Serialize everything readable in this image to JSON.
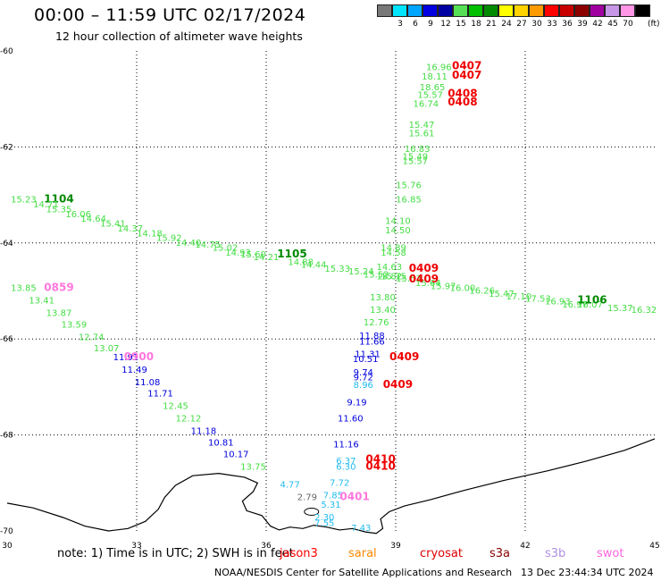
{
  "header": {
    "title": "00:00 – 11:59 UTC 02/17/2024",
    "subtitle": "12 hour collection of altimeter wave heights"
  },
  "legend": {
    "unit": "(ft)",
    "items": [
      {
        "color": "#787878",
        "label": ""
      },
      {
        "color": "#00e5ff",
        "label": "3"
      },
      {
        "color": "#00a5ff",
        "label": "6"
      },
      {
        "color": "#0000e0",
        "label": "9"
      },
      {
        "color": "#0000a0",
        "label": "12"
      },
      {
        "color": "#55e055",
        "label": "15"
      },
      {
        "color": "#00c000",
        "label": "18"
      },
      {
        "color": "#008a00",
        "label": "21"
      },
      {
        "color": "#ffff00",
        "label": "24"
      },
      {
        "color": "#ffd200",
        "label": "27"
      },
      {
        "color": "#ff9a00",
        "label": "30"
      },
      {
        "color": "#ff0000",
        "label": "33"
      },
      {
        "color": "#c80000",
        "label": "36"
      },
      {
        "color": "#8c0000",
        "label": "39"
      },
      {
        "color": "#a000a0",
        "label": "42"
      },
      {
        "color": "#c896e6",
        "label": "45"
      },
      {
        "color": "#ff96e6",
        "label": "70"
      },
      {
        "color": "#000000",
        "label": ""
      }
    ]
  },
  "axes": {
    "lon_ticks": [
      "30",
      "33",
      "36",
      "39",
      "42",
      "45"
    ],
    "lat_ticks": [
      "-60",
      "-62",
      "-64",
      "-66",
      "-68",
      "-70"
    ]
  },
  "colors": {
    "light_green": "#44dd44",
    "dark_green": "#008800",
    "blue": "#0000dd",
    "red": "#ee0000",
    "pink": "#ff77dd",
    "cyan": "#22bbee",
    "gray": "#666666"
  },
  "track1_labels": [
    {
      "text": "15.23",
      "lon": 30.38,
      "lat": -63.16,
      "c": "light_green"
    },
    {
      "text": "1104",
      "lon": 31.2,
      "lat": -63.16,
      "c": "dark_green"
    },
    {
      "text": "14.71",
      "lon": 30.9,
      "lat": -63.26,
      "c": "light_green"
    },
    {
      "text": "15.35",
      "lon": 31.2,
      "lat": -63.36,
      "c": "light_green"
    },
    {
      "text": "16.06",
      "lon": 31.65,
      "lat": -63.46,
      "c": "light_green"
    },
    {
      "text": "14.64",
      "lon": 32.0,
      "lat": -63.56,
      "c": "light_green"
    },
    {
      "text": "15.41",
      "lon": 32.45,
      "lat": -63.66,
      "c": "light_green"
    },
    {
      "text": "14.37",
      "lon": 32.85,
      "lat": -63.76,
      "c": "light_green"
    },
    {
      "text": "14.18",
      "lon": 33.3,
      "lat": -63.86,
      "c": "light_green"
    },
    {
      "text": "15.92",
      "lon": 33.75,
      "lat": -63.96,
      "c": "light_green"
    },
    {
      "text": "14.40",
      "lon": 34.2,
      "lat": -64.06,
      "c": "light_green"
    },
    {
      "text": "14.75",
      "lon": 34.65,
      "lat": -64.1,
      "c": "light_green"
    },
    {
      "text": "15.02",
      "lon": 35.05,
      "lat": -64.16,
      "c": "light_green"
    },
    {
      "text": "14.93",
      "lon": 35.35,
      "lat": -64.26,
      "c": "light_green"
    },
    {
      "text": "15.60",
      "lon": 35.7,
      "lat": -64.3,
      "c": "light_green"
    },
    {
      "text": "14.21",
      "lon": 36.0,
      "lat": -64.36,
      "c": "light_green"
    },
    {
      "text": "1105",
      "lon": 36.6,
      "lat": -64.3,
      "c": "dark_green"
    },
    {
      "text": "14.88",
      "lon": 36.8,
      "lat": -64.46,
      "c": "light_green"
    },
    {
      "text": "14.44",
      "lon": 37.1,
      "lat": -64.52,
      "c": "light_green"
    },
    {
      "text": "15.33",
      "lon": 37.65,
      "lat": -64.6,
      "c": "light_green"
    },
    {
      "text": "15.24",
      "lon": 38.2,
      "lat": -64.66,
      "c": "light_green"
    },
    {
      "text": "15.52",
      "lon": 38.55,
      "lat": -64.72,
      "c": "light_green"
    },
    {
      "text": "15.75",
      "lon": 38.95,
      "lat": -64.76,
      "c": "light_green"
    },
    {
      "text": "15.53",
      "lon": 39.3,
      "lat": -64.8,
      "c": "light_green"
    },
    {
      "text": "15.64",
      "lon": 39.75,
      "lat": -64.9,
      "c": "light_green"
    },
    {
      "text": "15.97",
      "lon": 40.1,
      "lat": -64.96,
      "c": "light_green"
    },
    {
      "text": "16.00",
      "lon": 40.55,
      "lat": -65.0,
      "c": "light_green"
    },
    {
      "text": "16.26",
      "lon": 41.0,
      "lat": -65.06,
      "c": "light_green"
    },
    {
      "text": "15.47",
      "lon": 41.45,
      "lat": -65.12,
      "c": "light_green"
    },
    {
      "text": "17.10",
      "lon": 41.85,
      "lat": -65.18,
      "c": "light_green"
    },
    {
      "text": "17.53",
      "lon": 42.3,
      "lat": -65.22,
      "c": "light_green"
    },
    {
      "text": "16.93",
      "lon": 42.75,
      "lat": -65.28,
      "c": "light_green"
    },
    {
      "text": "16.97",
      "lon": 43.15,
      "lat": -65.34,
      "c": "light_green"
    },
    {
      "text": "16.07",
      "lon": 43.5,
      "lat": -65.34,
      "c": "light_green"
    },
    {
      "text": "1106",
      "lon": 43.55,
      "lat": -65.26,
      "c": "dark_green"
    },
    {
      "text": "15.37",
      "lon": 44.2,
      "lat": -65.42,
      "c": "light_green"
    },
    {
      "text": "16.32",
      "lon": 44.75,
      "lat": -65.46,
      "c": "light_green"
    }
  ],
  "track2_labels": [
    {
      "text": "13.85",
      "lon": 30.38,
      "lat": -65.0,
      "c": "light_green"
    },
    {
      "text": "0859",
      "lon": 31.2,
      "lat": -65.0,
      "c": "pink"
    },
    {
      "text": "13.41",
      "lon": 30.8,
      "lat": -65.26,
      "c": "light_green"
    },
    {
      "text": "13.87",
      "lon": 31.2,
      "lat": -65.52,
      "c": "light_green"
    },
    {
      "text": "13.59",
      "lon": 31.55,
      "lat": -65.76,
      "c": "light_green"
    },
    {
      "text": "12.74",
      "lon": 31.95,
      "lat": -66.02,
      "c": "light_green"
    },
    {
      "text": "13.07",
      "lon": 32.3,
      "lat": -66.26,
      "c": "light_green"
    },
    {
      "text": "11.91",
      "lon": 32.75,
      "lat": -66.44,
      "c": "blue"
    },
    {
      "text": "0900",
      "lon": 33.05,
      "lat": -66.44,
      "c": "pink"
    },
    {
      "text": "11.49",
      "lon": 32.95,
      "lat": -66.7,
      "c": "blue"
    },
    {
      "text": "11.08",
      "lon": 33.25,
      "lat": -66.96,
      "c": "blue"
    },
    {
      "text": "11.71",
      "lon": 33.55,
      "lat": -67.2,
      "c": "blue"
    },
    {
      "text": "12.45",
      "lon": 33.9,
      "lat": -67.46,
      "c": "light_green"
    },
    {
      "text": "12.12",
      "lon": 34.2,
      "lat": -67.72,
      "c": "light_green"
    },
    {
      "text": "11.18",
      "lon": 34.55,
      "lat": -67.98,
      "c": "blue"
    },
    {
      "text": "10.81",
      "lon": 34.95,
      "lat": -68.22,
      "c": "blue"
    },
    {
      "text": "10.17",
      "lon": 35.3,
      "lat": -68.46,
      "c": "blue"
    },
    {
      "text": "13.75",
      "lon": 35.7,
      "lat": -68.72,
      "c": "light_green"
    }
  ],
  "track3_labels": [
    {
      "text": "16.96",
      "lon": 40.0,
      "lat": -60.4,
      "c": "light_green"
    },
    {
      "text": "0407",
      "lon": 40.65,
      "lat": -60.38,
      "c": "red"
    },
    {
      "text": "18.11",
      "lon": 39.9,
      "lat": -60.6,
      "c": "light_green"
    },
    {
      "text": "0407",
      "lon": 40.65,
      "lat": -60.58,
      "c": "red"
    },
    {
      "text": "18.65",
      "lon": 39.85,
      "lat": -60.82,
      "c": "light_green"
    },
    {
      "text": "15.57",
      "lon": 39.8,
      "lat": -60.98,
      "c": "light_green"
    },
    {
      "text": "0408",
      "lon": 40.55,
      "lat": -60.96,
      "c": "red"
    },
    {
      "text": "16.74",
      "lon": 39.7,
      "lat": -61.16,
      "c": "light_green"
    },
    {
      "text": "0408",
      "lon": 40.55,
      "lat": -61.14,
      "c": "red"
    },
    {
      "text": "15.47",
      "lon": 39.6,
      "lat": -61.6,
      "c": "light_green"
    },
    {
      "text": "15.61",
      "lon": 39.6,
      "lat": -61.78,
      "c": "light_green"
    },
    {
      "text": "16.83",
      "lon": 39.5,
      "lat": -62.1,
      "c": "light_green"
    },
    {
      "text": "15.49",
      "lon": 39.45,
      "lat": -62.26,
      "c": "light_green"
    },
    {
      "text": "15.57",
      "lon": 39.45,
      "lat": -62.36,
      "c": "light_green"
    },
    {
      "text": "15.76",
      "lon": 39.3,
      "lat": -62.86,
      "c": "light_green"
    },
    {
      "text": "16.85",
      "lon": 39.3,
      "lat": -63.16,
      "c": "light_green"
    },
    {
      "text": "14.10",
      "lon": 39.05,
      "lat": -63.6,
      "c": "light_green"
    },
    {
      "text": "14.50",
      "lon": 39.05,
      "lat": -63.8,
      "c": "light_green"
    },
    {
      "text": "14.89",
      "lon": 38.95,
      "lat": -64.16,
      "c": "light_green"
    },
    {
      "text": "14.58",
      "lon": 38.95,
      "lat": -64.26,
      "c": "light_green"
    },
    {
      "text": "14.63",
      "lon": 38.85,
      "lat": -64.56,
      "c": "light_green"
    },
    {
      "text": "0409",
      "lon": 39.65,
      "lat": -64.6,
      "c": "red"
    },
    {
      "text": "13.82",
      "lon": 38.85,
      "lat": -64.76,
      "c": "light_green"
    },
    {
      "text": "0409",
      "lon": 39.65,
      "lat": -64.82,
      "c": "red"
    },
    {
      "text": "13.80",
      "lon": 38.7,
      "lat": -65.2,
      "c": "light_green"
    },
    {
      "text": "13.40",
      "lon": 38.7,
      "lat": -65.46,
      "c": "light_green"
    },
    {
      "text": "12.76",
      "lon": 38.55,
      "lat": -65.72,
      "c": "light_green"
    },
    {
      "text": "11.88",
      "lon": 38.45,
      "lat": -66.0,
      "c": "blue"
    },
    {
      "text": "11.66",
      "lon": 38.45,
      "lat": -66.12,
      "c": "blue"
    },
    {
      "text": "11.31",
      "lon": 38.35,
      "lat": -66.38,
      "c": "blue"
    },
    {
      "text": "0409",
      "lon": 39.2,
      "lat": -66.44,
      "c": "red"
    },
    {
      "text": "10.51",
      "lon": 38.3,
      "lat": -66.48,
      "c": "blue"
    },
    {
      "text": "9.74",
      "lon": 38.25,
      "lat": -66.76,
      "c": "blue"
    },
    {
      "text": "9.72",
      "lon": 38.25,
      "lat": -66.86,
      "c": "blue"
    },
    {
      "text": "0409",
      "lon": 39.05,
      "lat": -67.02,
      "c": "red"
    },
    {
      "text": "8.96",
      "lon": 38.25,
      "lat": -67.02,
      "c": "cyan"
    },
    {
      "text": "9.19",
      "lon": 38.1,
      "lat": -67.38,
      "c": "blue"
    },
    {
      "text": "11.60",
      "lon": 37.95,
      "lat": -67.72,
      "c": "blue"
    },
    {
      "text": "11.16",
      "lon": 37.85,
      "lat": -68.26,
      "c": "blue"
    },
    {
      "text": "6.37",
      "lon": 37.85,
      "lat": -68.6,
      "c": "cyan"
    },
    {
      "text": "0410",
      "lon": 38.65,
      "lat": -68.58,
      "c": "red"
    },
    {
      "text": "6.30",
      "lon": 37.85,
      "lat": -68.72,
      "c": "cyan"
    },
    {
      "text": "0410",
      "lon": 38.65,
      "lat": -68.72,
      "c": "red"
    }
  ],
  "track4_labels": [
    {
      "text": "4.77",
      "lon": 36.55,
      "lat": -69.1,
      "c": "cyan"
    },
    {
      "text": "7.72",
      "lon": 37.7,
      "lat": -69.06,
      "c": "cyan"
    },
    {
      "text": "2.79",
      "lon": 36.95,
      "lat": -69.36,
      "c": "gray"
    },
    {
      "text": "7.85",
      "lon": 37.55,
      "lat": -69.32,
      "c": "cyan"
    },
    {
      "text": "0401",
      "lon": 38.05,
      "lat": -69.36,
      "c": "pink"
    },
    {
      "text": "5.31",
      "lon": 37.5,
      "lat": -69.52,
      "c": "cyan"
    },
    {
      "text": "2.30",
      "lon": 37.35,
      "lat": -69.78,
      "c": "cyan"
    },
    {
      "text": "7.55",
      "lon": 37.35,
      "lat": -69.9,
      "c": "cyan"
    },
    {
      "text": "7.43",
      "lon": 38.2,
      "lat": -70.0,
      "c": "cyan"
    }
  ],
  "satellites": [
    {
      "name": "jason3",
      "color": "#ff0000"
    },
    {
      "name": "saral",
      "color": "#ff8800"
    },
    {
      "name": "cryosat",
      "color": "#dd0000"
    },
    {
      "name": "s3a",
      "color": "#880000"
    },
    {
      "name": "s3b",
      "color": "#b090e0"
    },
    {
      "name": "swot",
      "color": "#ff66dd"
    }
  ],
  "overlap": {
    "jason3": "jason3",
    "notelabel": "note:  1) Time is in UTC; 2) SWH is in feet"
  },
  "footer": {
    "source": "NOAA/NESDIS Center for Satellite Applications and Research",
    "timestamp": "13 Dec 23:44:34 UTC 2024"
  }
}
